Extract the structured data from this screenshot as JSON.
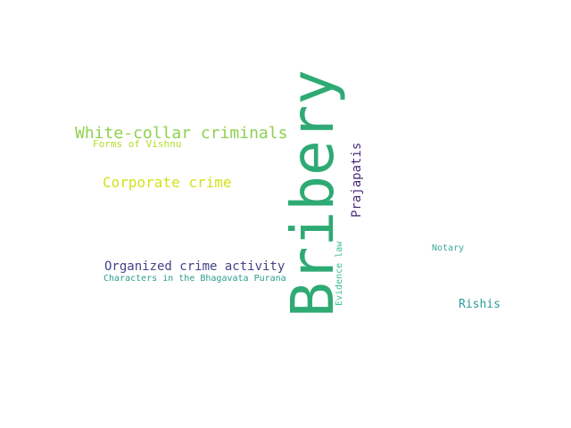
{
  "words": [
    {
      "key": "bribery",
      "text": "Bribery",
      "color": "#2eaa74"
    },
    {
      "key": "white_collar",
      "text": "White-collar criminals",
      "color": "#8fd14f"
    },
    {
      "key": "forms_vishnu",
      "text": "Forms of Vishnu",
      "color": "#b5de2b"
    },
    {
      "key": "corporate",
      "text": "Corporate crime",
      "color": "#d3e21a"
    },
    {
      "key": "prajapatis",
      "text": "Prajapatis",
      "color": "#4a2c78"
    },
    {
      "key": "organized",
      "text": "Organized crime activity",
      "color": "#414487"
    },
    {
      "key": "characters",
      "text": "Characters in the Bhagavata Purana",
      "color": "#2a9d8f"
    },
    {
      "key": "evidence",
      "text": "Evidence law",
      "color": "#3bbf8a"
    },
    {
      "key": "notary",
      "text": "Notary",
      "color": "#3aa8a0"
    },
    {
      "key": "rishis",
      "text": "Rishis",
      "color": "#2a9d9a"
    }
  ]
}
